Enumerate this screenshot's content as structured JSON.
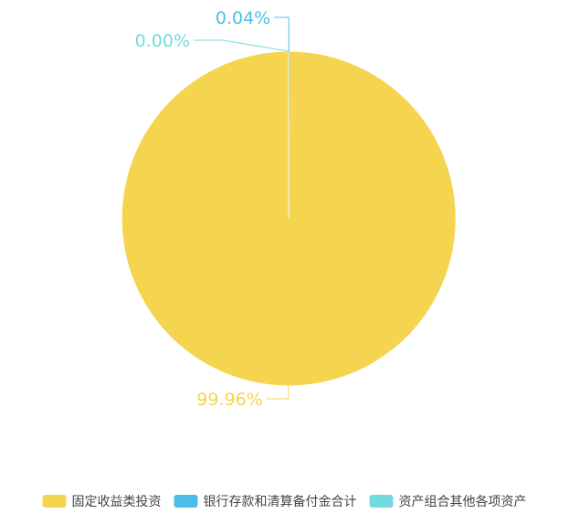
{
  "chart_data": {
    "type": "pie",
    "slices": [
      {
        "name": "固定收益类投资",
        "value": 99.96,
        "label": "99.96%",
        "color": "#f5d44f"
      },
      {
        "name": "银行存款和清算备付金合计",
        "value": 0.04,
        "label": "0.04%",
        "color": "#4dbde8"
      },
      {
        "name": "资产组合其他各项资产",
        "value": 0.0,
        "label": "0.00%",
        "color": "#73dbe0"
      }
    ],
    "legend_position": "bottom"
  }
}
